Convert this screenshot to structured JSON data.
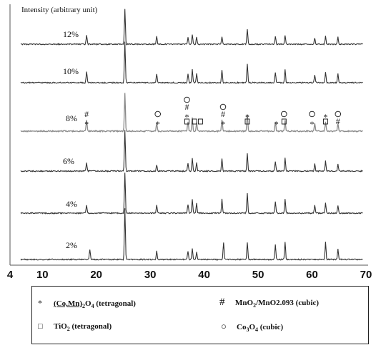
{
  "chart_data": {
    "type": "line",
    "ylabel": "Intensity (arbitrary unit)",
    "xlabel": "",
    "xlim": [
      4,
      70
    ],
    "x_ticks": [
      4,
      10,
      20,
      30,
      40,
      50,
      60,
      70
    ],
    "x_tick_labels": [
      "4",
      "10",
      "20",
      "30",
      "40",
      "50",
      "60",
      "70"
    ],
    "y_ticks_shown": false,
    "grid": false,
    "legend_position": "bottom",
    "series": [
      {
        "name": "12%",
        "color": "#333333",
        "peaks": [
          {
            "x": 18.2,
            "h": 0.26
          },
          {
            "x": 25.3,
            "h": 1.0
          },
          {
            "x": 31.2,
            "h": 0.22
          },
          {
            "x": 37.0,
            "h": 0.18
          },
          {
            "x": 37.8,
            "h": 0.28
          },
          {
            "x": 38.6,
            "h": 0.2
          },
          {
            "x": 43.3,
            "h": 0.2
          },
          {
            "x": 48.0,
            "h": 0.42
          },
          {
            "x": 53.2,
            "h": 0.22
          },
          {
            "x": 55.0,
            "h": 0.26
          },
          {
            "x": 60.5,
            "h": 0.18
          },
          {
            "x": 62.5,
            "h": 0.22
          },
          {
            "x": 64.8,
            "h": 0.2
          }
        ]
      },
      {
        "name": "10%",
        "color": "#333333",
        "peaks": [
          {
            "x": 18.2,
            "h": 0.28
          },
          {
            "x": 25.3,
            "h": 1.0
          },
          {
            "x": 31.2,
            "h": 0.22
          },
          {
            "x": 37.0,
            "h": 0.22
          },
          {
            "x": 37.8,
            "h": 0.32
          },
          {
            "x": 38.6,
            "h": 0.22
          },
          {
            "x": 43.3,
            "h": 0.32
          },
          {
            "x": 48.0,
            "h": 0.45
          },
          {
            "x": 53.2,
            "h": 0.26
          },
          {
            "x": 55.0,
            "h": 0.32
          },
          {
            "x": 60.5,
            "h": 0.2
          },
          {
            "x": 62.5,
            "h": 0.26
          },
          {
            "x": 64.8,
            "h": 0.22
          }
        ]
      },
      {
        "name": "8%",
        "color": "#8a8a8a",
        "peaks": [
          {
            "x": 18.2,
            "h": 0.28
          },
          {
            "x": 25.3,
            "h": 1.0
          },
          {
            "x": 31.2,
            "h": 0.22
          },
          {
            "x": 37.0,
            "h": 0.24
          },
          {
            "x": 37.8,
            "h": 0.36
          },
          {
            "x": 38.6,
            "h": 0.22
          },
          {
            "x": 43.3,
            "h": 0.3
          },
          {
            "x": 48.0,
            "h": 0.42
          },
          {
            "x": 53.2,
            "h": 0.24
          },
          {
            "x": 55.0,
            "h": 0.3
          },
          {
            "x": 60.5,
            "h": 0.2
          },
          {
            "x": 62.5,
            "h": 0.24
          },
          {
            "x": 64.8,
            "h": 0.2
          }
        ]
      },
      {
        "name": "6%",
        "color": "#333333",
        "peaks": [
          {
            "x": 18.2,
            "h": 0.2
          },
          {
            "x": 25.3,
            "h": 1.0
          },
          {
            "x": 31.2,
            "h": 0.16
          },
          {
            "x": 37.0,
            "h": 0.18
          },
          {
            "x": 37.8,
            "h": 0.3
          },
          {
            "x": 38.6,
            "h": 0.2
          },
          {
            "x": 43.3,
            "h": 0.3
          },
          {
            "x": 48.0,
            "h": 0.42
          },
          {
            "x": 53.2,
            "h": 0.24
          },
          {
            "x": 55.0,
            "h": 0.32
          },
          {
            "x": 60.5,
            "h": 0.18
          },
          {
            "x": 62.5,
            "h": 0.24
          },
          {
            "x": 64.8,
            "h": 0.18
          }
        ]
      },
      {
        "name": "4%",
        "color": "#333333",
        "peaks": [
          {
            "x": 18.2,
            "h": 0.2
          },
          {
            "x": 25.3,
            "h": 1.0
          },
          {
            "x": 31.2,
            "h": 0.2
          },
          {
            "x": 37.0,
            "h": 0.22
          },
          {
            "x": 37.8,
            "h": 0.34
          },
          {
            "x": 38.6,
            "h": 0.24
          },
          {
            "x": 43.3,
            "h": 0.34
          },
          {
            "x": 48.0,
            "h": 0.48
          },
          {
            "x": 53.2,
            "h": 0.28
          },
          {
            "x": 55.0,
            "h": 0.36
          },
          {
            "x": 60.5,
            "h": 0.2
          },
          {
            "x": 62.5,
            "h": 0.26
          },
          {
            "x": 64.8,
            "h": 0.2
          }
        ]
      },
      {
        "name": "2%",
        "color": "#333333",
        "peaks": [
          {
            "x": 18.8,
            "h": 0.2
          },
          {
            "x": 25.3,
            "h": 1.0
          },
          {
            "x": 31.2,
            "h": 0.16
          },
          {
            "x": 37.0,
            "h": 0.16
          },
          {
            "x": 37.8,
            "h": 0.22
          },
          {
            "x": 38.6,
            "h": 0.14
          },
          {
            "x": 43.6,
            "h": 0.34
          },
          {
            "x": 48.0,
            "h": 0.34
          },
          {
            "x": 53.2,
            "h": 0.3
          },
          {
            "x": 55.0,
            "h": 0.34
          },
          {
            "x": 62.5,
            "h": 0.34
          },
          {
            "x": 64.8,
            "h": 0.2
          }
        ]
      }
    ],
    "phase_markers": [
      {
        "x": 18.2,
        "symbols": [
          "#",
          "*"
        ]
      },
      {
        "x": 31.4,
        "symbols": [
          "○",
          "*"
        ]
      },
      {
        "x": 36.8,
        "symbols": [
          "○",
          "#",
          "*",
          "□"
        ]
      },
      {
        "x": 38.2,
        "symbols": [
          "□"
        ]
      },
      {
        "x": 39.3,
        "symbols": [
          "□"
        ]
      },
      {
        "x": 43.5,
        "symbols": [
          "○",
          "#",
          "*"
        ]
      },
      {
        "x": 48.0,
        "symbols": [
          "*",
          "□"
        ]
      },
      {
        "x": 53.4,
        "symbols": [
          "*"
        ]
      },
      {
        "x": 54.8,
        "symbols": [
          "○",
          "□"
        ]
      },
      {
        "x": 60.0,
        "symbols": [
          "○",
          "*"
        ]
      },
      {
        "x": 62.5,
        "symbols": [
          "*",
          "□"
        ]
      },
      {
        "x": 64.8,
        "symbols": [
          "○",
          "#"
        ]
      }
    ]
  },
  "legend": {
    "items": [
      {
        "symbol": "*",
        "icon": "star-icon",
        "formula_html": "<span class='ul'>(Co,Mn)</span><sub>2</sub>O<sub>4</sub> (tetragonal)"
      },
      {
        "symbol": "#",
        "icon": "hash-icon",
        "formula_html": "MnO<sub>2</sub>/MnO2.093 (cubic)"
      },
      {
        "symbol": "□",
        "icon": "square-icon",
        "formula_html": "TiO<sub>2</sub> (tetragonal)"
      },
      {
        "symbol": "○",
        "icon": "circle-icon",
        "formula_html": "Co<sub>3</sub>O<sub>4</sub> (cubic)"
      }
    ]
  }
}
